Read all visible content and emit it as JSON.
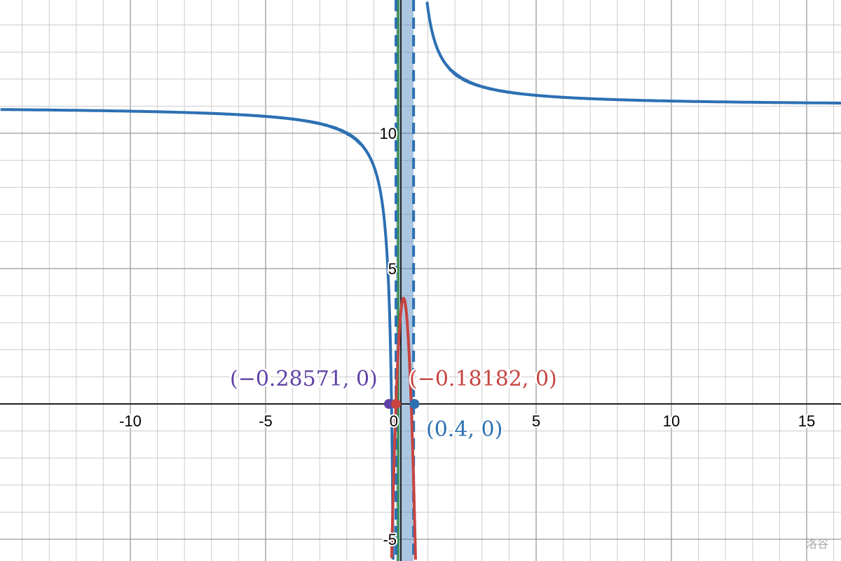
{
  "chart_data": {
    "type": "line",
    "xlim": [
      -14.8,
      16.3
    ],
    "ylim": [
      -5.8,
      14.9
    ],
    "grid": true,
    "x_ticks": [
      "-10",
      "-5",
      "0",
      "5",
      "10",
      "15"
    ],
    "x_tick_values": [
      -10,
      -5,
      0,
      5,
      10,
      15
    ],
    "y_ticks": [
      "10",
      "5",
      "-5"
    ],
    "y_tick_values": [
      10,
      5,
      -5
    ],
    "series": [
      {
        "color": "#2d70b3",
        "kind": "hyperbola",
        "horizontal_asymptote": 11
      },
      {
        "color": "#c74440",
        "kind": "parabola",
        "vertex": [
          0.1,
          3.9
        ],
        "roots": [
          -0.18182,
          0.38
        ]
      },
      {
        "color": "#2d70b3",
        "kind": "vertical-dashed",
        "x": [
          -0.18,
          0.47
        ]
      },
      {
        "color": "#388c46",
        "kind": "vertical-line",
        "x": -0.1
      }
    ],
    "shaded_band": {
      "color": "#2d70b3",
      "x_from": -0.18,
      "x_to": 0.47
    },
    "points": [
      {
        "x": -0.28571,
        "y": 0,
        "label": "(−0.28571, 0)",
        "color": "#6042a6"
      },
      {
        "x": -0.18182,
        "y": 0,
        "label": "(−0.18182, 0)",
        "color": "#c74440"
      },
      {
        "x": 0.4,
        "y": 0,
        "label": "(0.4, 0)",
        "color": "#2d70b3"
      }
    ]
  },
  "watermark": "洛谷"
}
